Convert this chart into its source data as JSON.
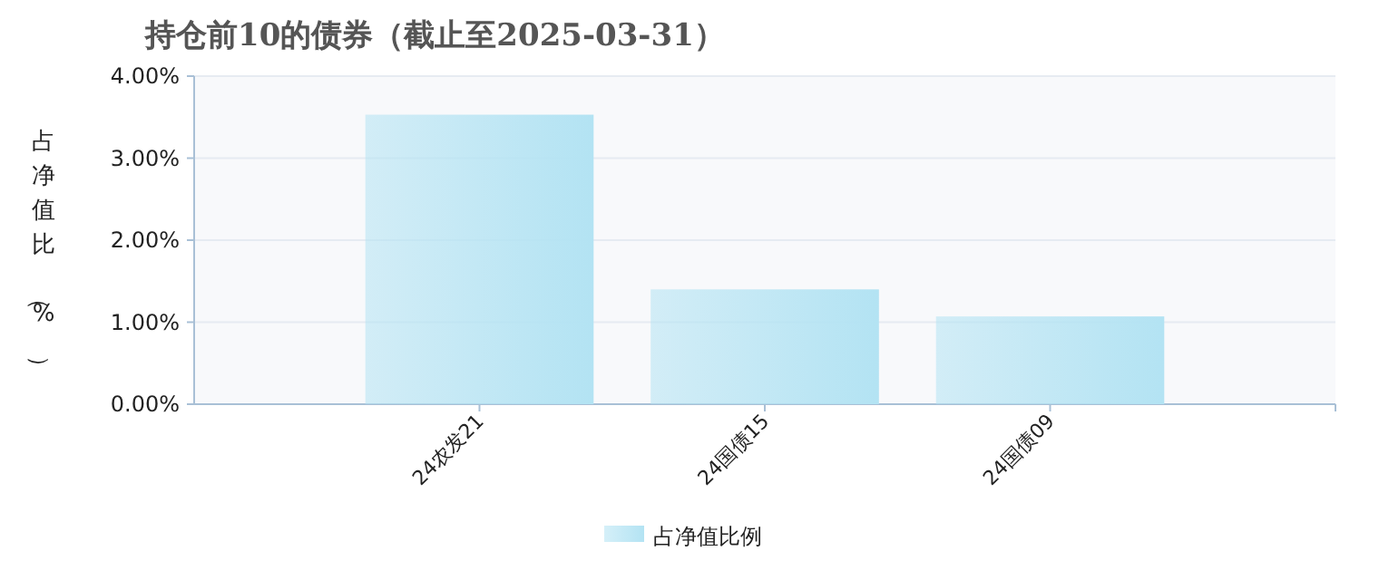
{
  "chart_data": {
    "type": "bar",
    "title": "持仓前10的债券（截止至2025-03-31）",
    "ylabel": "占净值比（%）",
    "categories": [
      "24农发21",
      "24国债15",
      "24国债09"
    ],
    "series": [
      {
        "name": "占净值比例",
        "color": "#b3e3f3",
        "values": [
          3.53,
          1.4,
          1.07
        ]
      }
    ],
    "ylim": [
      0,
      4
    ],
    "yticks": [
      {
        "value": 0,
        "label": "0.00%"
      },
      {
        "value": 1,
        "label": "1.00%"
      },
      {
        "value": 2,
        "label": "2.00%"
      },
      {
        "value": 3,
        "label": "3.00%"
      },
      {
        "value": 4,
        "label": "4.00%"
      }
    ],
    "grid": "y",
    "legend": "bottom"
  }
}
